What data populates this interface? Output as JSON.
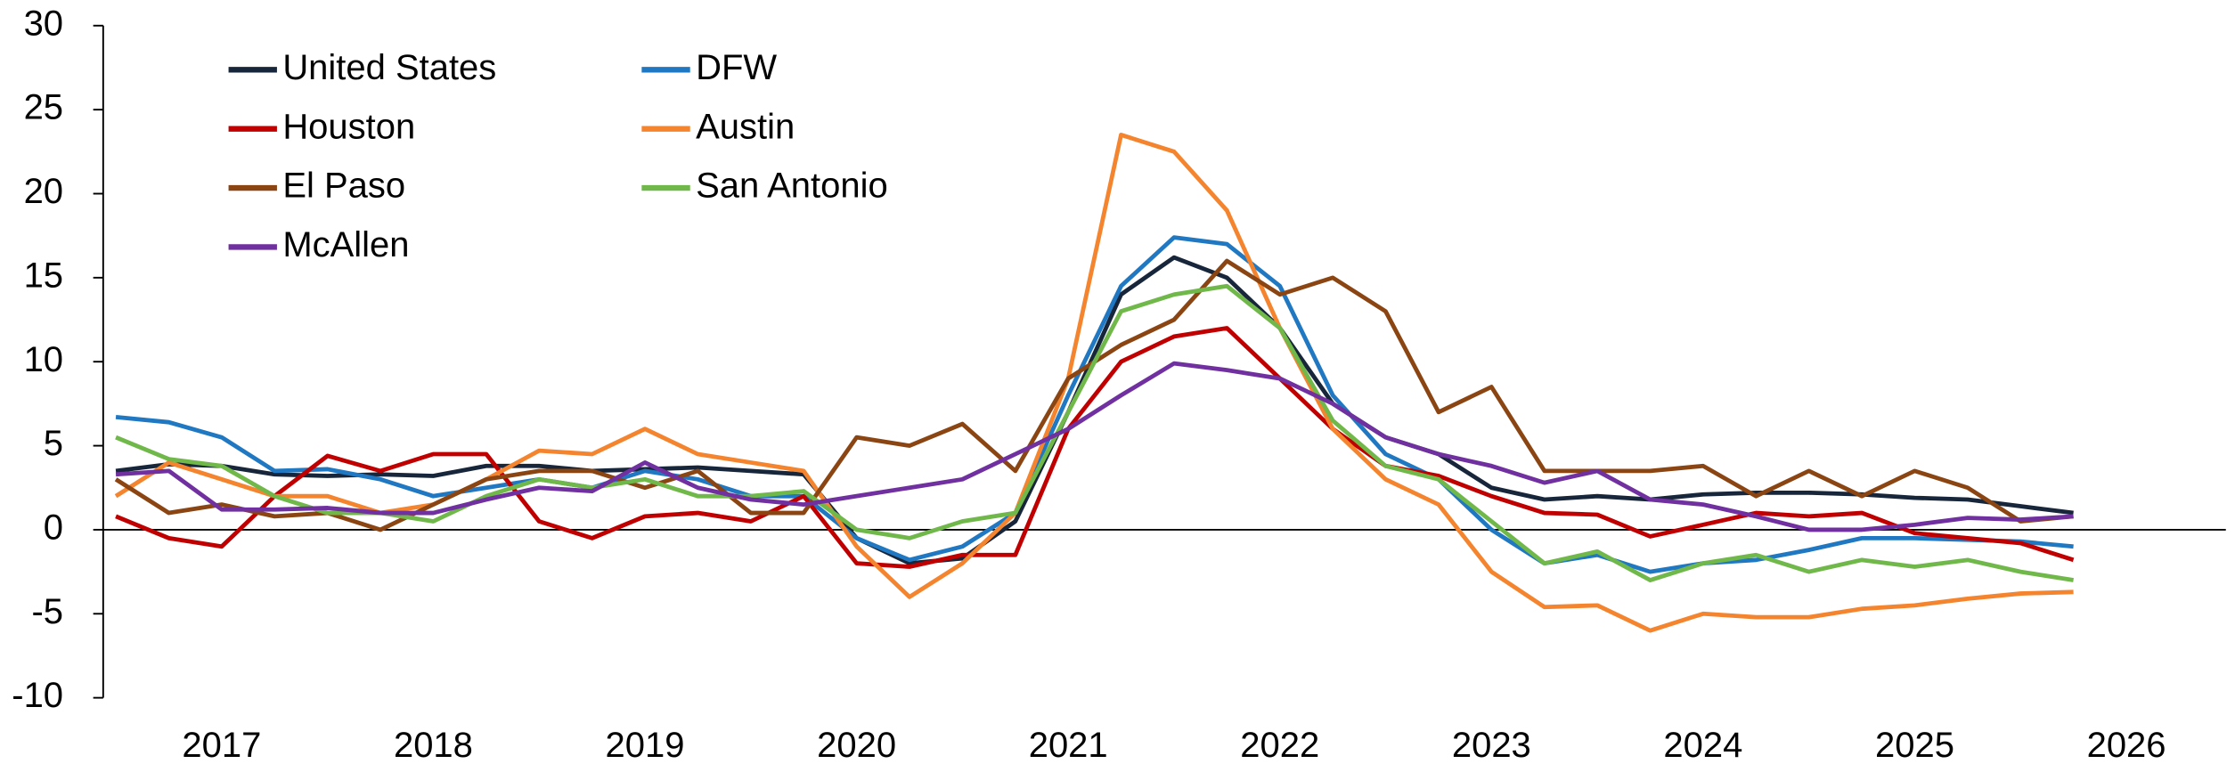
{
  "chart_data": {
    "type": "line",
    "x": [
      2017.0,
      2017.25,
      2017.5,
      2017.75,
      2018.0,
      2018.25,
      2018.5,
      2018.75,
      2019.0,
      2019.25,
      2019.5,
      2019.75,
      2020.0,
      2020.25,
      2020.5,
      2020.75,
      2021.0,
      2021.25,
      2021.5,
      2021.75,
      2022.0,
      2022.25,
      2022.5,
      2022.75,
      2023.0,
      2023.25,
      2023.5,
      2023.75,
      2024.0,
      2024.25,
      2024.5,
      2024.75,
      2025.0,
      2025.25,
      2025.5,
      2025.75,
      2026.0,
      2026.25
    ],
    "series": [
      {
        "name": "United States",
        "color": "#17263a",
        "values": [
          3.5,
          3.9,
          3.8,
          3.3,
          3.2,
          3.3,
          3.2,
          3.8,
          3.8,
          3.5,
          3.6,
          3.7,
          3.5,
          3.3,
          -0.5,
          -2,
          -1.7,
          0.5,
          7,
          14,
          16.2,
          15,
          12,
          7.5,
          5.5,
          4.5,
          2.5,
          1.8,
          2,
          1.8,
          2.1,
          2.2,
          2.2,
          2.1,
          1.9,
          1.8,
          1.4,
          1.0
        ]
      },
      {
        "name": "DFW",
        "color": "#1f78c1",
        "values": [
          6.7,
          6.4,
          5.5,
          3.5,
          3.6,
          3,
          2,
          2.5,
          3,
          2.5,
          3.5,
          3,
          2,
          2,
          -0.5,
          -1.8,
          -1,
          1,
          8,
          14.5,
          17.4,
          17,
          14.5,
          8,
          4.5,
          3,
          0,
          -2,
          -1.5,
          -2.5,
          -2,
          -1.8,
          -1.2,
          -0.5,
          -0.5,
          -0.6,
          -0.7,
          -1.0
        ]
      },
      {
        "name": "Houston",
        "color": "#c00000",
        "values": [
          0.8,
          -0.5,
          -1,
          2,
          4.4,
          3.5,
          4.5,
          4.5,
          0.5,
          -0.5,
          0.8,
          1,
          0.5,
          2,
          -2,
          -2.2,
          -1.5,
          -1.5,
          6,
          10,
          11.5,
          12,
          9,
          6,
          3.8,
          3.2,
          2,
          1,
          0.9,
          -0.4,
          0.3,
          1,
          0.8,
          1,
          -0.2,
          -0.5,
          -0.8,
          -1.8
        ]
      },
      {
        "name": "Austin",
        "color": "#f4842e",
        "values": [
          2,
          4,
          3,
          2,
          2,
          1,
          1.5,
          3,
          4.7,
          4.5,
          6,
          4.5,
          4,
          3.5,
          -1,
          -4,
          -2,
          1,
          9,
          23.5,
          22.5,
          19,
          12,
          6,
          3,
          1.5,
          -2.5,
          -4.6,
          -4.5,
          -6,
          -5,
          -5.2,
          -5.2,
          -4.7,
          -4.5,
          -4.1,
          -3.8,
          -3.7
        ]
      },
      {
        "name": "El Paso",
        "color": "#8b4513",
        "values": [
          3,
          1,
          1.5,
          0.8,
          1,
          0,
          1.5,
          3,
          3.5,
          3.5,
          2.5,
          3.5,
          1,
          1,
          5.5,
          5,
          6.3,
          3.5,
          9,
          11,
          12.5,
          16,
          14,
          15,
          13,
          7,
          8.5,
          3.5,
          3.5,
          3.5,
          3.8,
          2,
          3.5,
          2,
          3.5,
          2.5,
          0.5,
          0.8
        ]
      },
      {
        "name": "San Antonio",
        "color": "#70b84a",
        "values": [
          5.5,
          4.2,
          3.8,
          2,
          1,
          1,
          0.5,
          2,
          3,
          2.5,
          3,
          2,
          2,
          2.3,
          0,
          -0.5,
          0.5,
          1,
          7,
          13,
          14,
          14.5,
          12,
          6.5,
          3.8,
          3,
          0.5,
          -2,
          -1.3,
          -3,
          -2,
          -1.5,
          -2.5,
          -1.8,
          -2.2,
          -1.8,
          -2.5,
          -3.0
        ]
      },
      {
        "name": "McAllen",
        "color": "#7030a0",
        "values": [
          3.3,
          3.5,
          1.2,
          1.2,
          1.3,
          1,
          1,
          1.8,
          2.5,
          2.3,
          4,
          2.5,
          1.8,
          1.5,
          2,
          2.5,
          3,
          4.5,
          6,
          8,
          9.9,
          9.5,
          9,
          7.5,
          5.5,
          4.5,
          3.8,
          2.8,
          3.5,
          1.8,
          1.5,
          0.8,
          0,
          0,
          0.3,
          0.7,
          0.6,
          0.8
        ]
      }
    ],
    "xlim": [
      2016.94,
      2026.97
    ],
    "xticks": [
      {
        "value": 2017.5,
        "label": "2017"
      },
      {
        "value": 2018.5,
        "label": "2018"
      },
      {
        "value": 2019.5,
        "label": "2019"
      },
      {
        "value": 2020.5,
        "label": "2020"
      },
      {
        "value": 2021.5,
        "label": "2021"
      },
      {
        "value": 2022.5,
        "label": "2022"
      },
      {
        "value": 2023.5,
        "label": "2023"
      },
      {
        "value": 2024.5,
        "label": "2024"
      },
      {
        "value": 2025.5,
        "label": "2025"
      },
      {
        "value": 2026.5,
        "label": "2026"
      }
    ],
    "ylim": [
      -10,
      30
    ],
    "yticks": [
      -10,
      -5,
      0,
      5,
      10,
      15,
      20,
      25,
      30
    ],
    "legend": "upper left"
  }
}
